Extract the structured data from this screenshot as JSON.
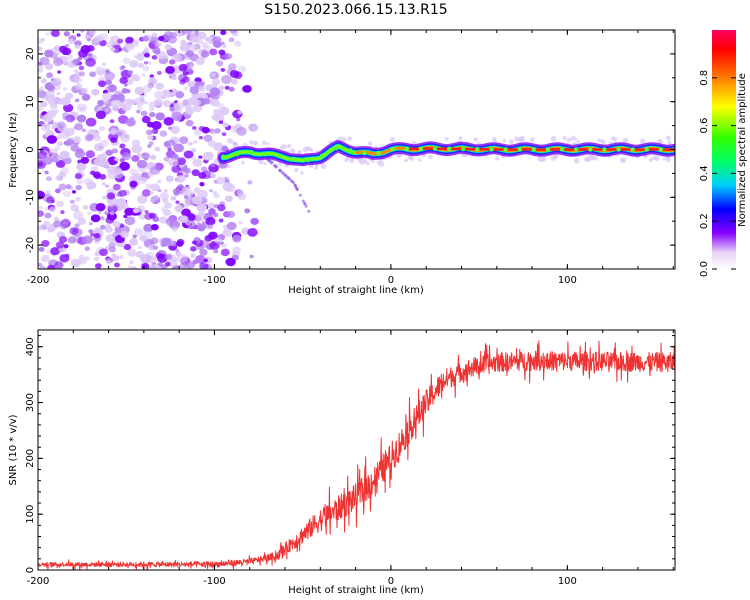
{
  "title": "S150.2023.066.15.13.R15",
  "chart_data": [
    {
      "type": "heatmap",
      "xlabel": "Height of straight line (km)",
      "ylabel": "Frequency (Hz)",
      "xlim": [
        -200,
        161
      ],
      "ylim": [
        -25,
        25
      ],
      "xticks": [
        -200,
        -100,
        0,
        100
      ],
      "yticks": [
        20,
        10,
        0,
        -10,
        -20
      ],
      "colorbar": {
        "label": "Normalized spectral amplitude",
        "range": [
          0,
          1
        ],
        "ticks": [
          0.0,
          0.2,
          0.4,
          0.6,
          0.8
        ]
      },
      "description_values": {
        "noise_region_x": [
          -200,
          -80
        ],
        "signal_start_x": -95,
        "signal_track": [
          {
            "x": -95,
            "y": -1.5
          },
          {
            "x": -80,
            "y": -0.5
          },
          {
            "x": -70,
            "y": -1
          },
          {
            "x": -60,
            "y": -1.5
          },
          {
            "x": -50,
            "y": -2.5
          },
          {
            "x": -40,
            "y": -1.5
          },
          {
            "x": -30,
            "y": 0.5
          },
          {
            "x": -20,
            "y": -0.5
          },
          {
            "x": -10,
            "y": -1
          },
          {
            "x": 0,
            "y": 0
          },
          {
            "x": 20,
            "y": 0.2
          },
          {
            "x": 60,
            "y": 0
          },
          {
            "x": 100,
            "y": 0
          },
          {
            "x": 140,
            "y": 0
          },
          {
            "x": 160,
            "y": 0
          }
        ],
        "branch_track": [
          {
            "x": -70,
            "y": -2
          },
          {
            "x": -55,
            "y": -7
          },
          {
            "x": -45,
            "y": -14
          }
        ]
      }
    },
    {
      "type": "line",
      "xlabel": "Height of straight line (km)",
      "ylabel": "SNR (10 * v/v)",
      "xlim": [
        -200,
        161
      ],
      "ylim": [
        0,
        430
      ],
      "xticks": [
        -200,
        -100,
        0,
        100
      ],
      "yticks": [
        0,
        100,
        200,
        300,
        400
      ],
      "color": "#ee3333",
      "trend": [
        {
          "x": -200,
          "y": 10
        },
        {
          "x": -100,
          "y": 10
        },
        {
          "x": -80,
          "y": 15
        },
        {
          "x": -65,
          "y": 25
        },
        {
          "x": -55,
          "y": 50
        },
        {
          "x": -40,
          "y": 90
        },
        {
          "x": -20,
          "y": 130
        },
        {
          "x": -10,
          "y": 160
        },
        {
          "x": 0,
          "y": 200
        },
        {
          "x": 10,
          "y": 250
        },
        {
          "x": 20,
          "y": 300
        },
        {
          "x": 30,
          "y": 340
        },
        {
          "x": 45,
          "y": 362
        },
        {
          "x": 60,
          "y": 372
        },
        {
          "x": 80,
          "y": 375
        },
        {
          "x": 161,
          "y": 372
        }
      ],
      "noise_amplitude": [
        {
          "x": -200,
          "a": 5
        },
        {
          "x": -70,
          "a": 8
        },
        {
          "x": -40,
          "a": 30
        },
        {
          "x": 0,
          "a": 40
        },
        {
          "x": 40,
          "a": 25
        },
        {
          "x": 161,
          "a": 25
        }
      ]
    }
  ]
}
